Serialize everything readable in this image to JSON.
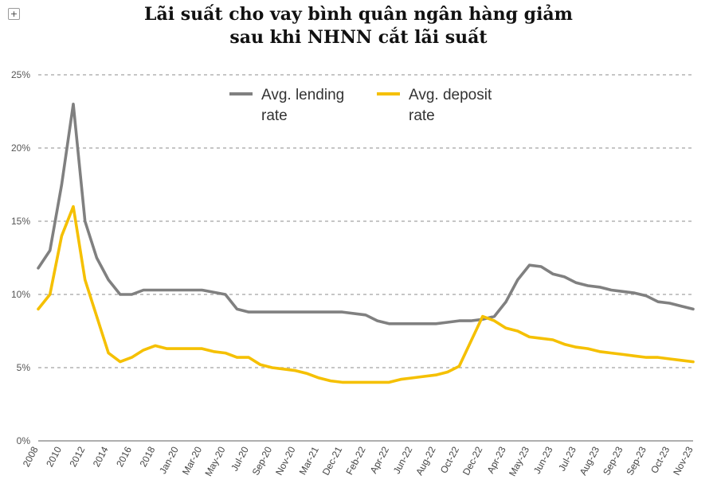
{
  "chart_data": {
    "type": "line",
    "title_lines": [
      "Lãi suất cho vay bình quân ngân hàng giảm",
      "sau khi NHNN cắt lãi suất"
    ],
    "categories": [
      "2008",
      "2010",
      "2012",
      "2014",
      "2016",
      "2018",
      "Jan-20",
      "Mar-20",
      "May-20",
      "Jul-20",
      "Sep-20",
      "Nov-20",
      "Mar-21",
      "Dec-21",
      "Feb-22",
      "Apr-22",
      "Jun-22",
      "Aug-22",
      "Oct-22",
      "Dec-22",
      "Apr-23",
      "May-23",
      "Jun-23",
      "Jul-23",
      "Aug-23",
      "Sep-23",
      "Sep-23",
      "Oct-23",
      "Nov-23"
    ],
    "y_ticks": [
      "0%",
      "5%",
      "10%",
      "15%",
      "20%",
      "25%"
    ],
    "ylim": [
      0,
      25
    ],
    "grid": true,
    "legend_position": "top",
    "series": [
      {
        "name_lines": [
          "Avg. lending",
          "rate"
        ],
        "color": "#808080",
        "x": [
          0,
          0.5,
          1,
          1.5,
          2,
          2.5,
          3,
          3.5,
          4,
          4.5,
          5,
          5.5,
          6,
          7,
          8,
          8.5,
          9,
          9.5,
          10,
          11,
          12,
          12.5,
          13,
          14,
          14.5,
          15,
          15.5,
          16,
          16.5,
          17,
          17.5,
          18,
          18.5,
          19,
          19.5,
          20,
          20.5,
          21,
          21.5,
          22,
          22.5,
          23,
          23.5,
          24,
          24.5,
          25,
          25.5,
          26,
          26.5,
          27,
          27.5,
          28
        ],
        "values": [
          11.8,
          13,
          17.5,
          23,
          15,
          12.5,
          11,
          10,
          10,
          10.3,
          10.3,
          10.3,
          10.3,
          10.3,
          10,
          9,
          8.8,
          8.8,
          8.8,
          8.8,
          8.8,
          8.8,
          8.8,
          8.6,
          8.2,
          8,
          8,
          8,
          8,
          8,
          8.1,
          8.2,
          8.2,
          8.3,
          8.5,
          9.5,
          11,
          12,
          11.9,
          11.4,
          11.2,
          10.8,
          10.6,
          10.5,
          10.3,
          10.2,
          10.1,
          9.9,
          9.5,
          9.4,
          9.2,
          9.0
        ]
      },
      {
        "name_lines": [
          "Avg. deposit",
          "rate"
        ],
        "color": "#f5c000",
        "x": [
          0,
          0.5,
          1,
          1.5,
          2,
          2.5,
          3,
          3.5,
          4,
          4.5,
          5,
          5.5,
          6,
          6.5,
          7,
          7.5,
          8,
          8.5,
          9,
          9.5,
          10,
          10.5,
          11,
          11.5,
          12,
          12.5,
          13,
          13.5,
          14,
          14.5,
          15,
          15.5,
          16,
          16.5,
          17,
          17.5,
          18,
          18.5,
          19,
          19.5,
          20,
          20.5,
          21,
          21.5,
          22,
          22.5,
          23,
          23.5,
          24,
          24.5,
          25,
          25.5,
          26,
          26.5,
          27,
          27.5,
          28
        ],
        "values": [
          9,
          10,
          14,
          16,
          11,
          8.5,
          6,
          5.4,
          5.7,
          6.2,
          6.5,
          6.3,
          6.3,
          6.3,
          6.3,
          6.1,
          6.0,
          5.7,
          5.7,
          5.2,
          5.0,
          4.9,
          4.8,
          4.6,
          4.3,
          4.1,
          4.0,
          4.0,
          4.0,
          4.0,
          4.0,
          4.2,
          4.3,
          4.4,
          4.5,
          4.7,
          5.1,
          6.8,
          8.5,
          8.2,
          7.7,
          7.5,
          7.1,
          7.0,
          6.9,
          6.6,
          6.4,
          6.3,
          6.1,
          6.0,
          5.9,
          5.8,
          5.7,
          5.7,
          5.6,
          5.5,
          5.4
        ]
      }
    ]
  }
}
